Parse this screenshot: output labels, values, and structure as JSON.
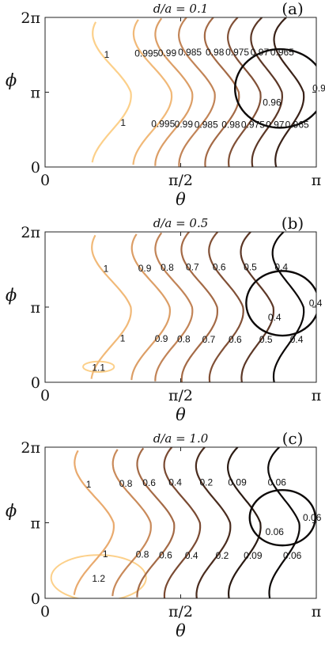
{
  "chart_data": [
    {
      "type": "contour",
      "title": "d/a = 0.1",
      "panel_label": "(a)",
      "xlabel": "θ",
      "ylabel": "ϕ",
      "xlim": [
        0,
        3.1416
      ],
      "ylim": [
        0,
        6.2832
      ],
      "xtick_labels": [
        "0",
        "π/2",
        "π"
      ],
      "ytick_labels": [
        "0",
        "π",
        "2π"
      ],
      "levels": [
        {
          "value": "1",
          "color": "#fcd08a"
        },
        {
          "value": "0.995",
          "color": "#f1b978"
        },
        {
          "value": "0.99",
          "color": "#dc9e66"
        },
        {
          "value": "0.985",
          "color": "#c28457"
        },
        {
          "value": "0.98",
          "color": "#a46a46"
        },
        {
          "value": "0.975",
          "color": "#815036"
        },
        {
          "value": "0.97",
          "color": "#5c3726"
        },
        {
          "value": "0.965",
          "color": "#3a2218"
        },
        {
          "value": "0.96",
          "color": "#0d0908"
        }
      ]
    },
    {
      "type": "contour",
      "title": "d/a = 0.5",
      "panel_label": "(b)",
      "xlabel": "θ",
      "ylabel": "ϕ",
      "xlim": [
        0,
        3.1416
      ],
      "ylim": [
        0,
        6.2832
      ],
      "xtick_labels": [
        "0",
        "π/2",
        "π"
      ],
      "ytick_labels": [
        "0",
        "π",
        "2π"
      ],
      "levels": [
        {
          "value": "1.1",
          "color": "#fcd08a"
        },
        {
          "value": "1",
          "color": "#f1b978"
        },
        {
          "value": "0.9",
          "color": "#dc9e66"
        },
        {
          "value": "0.8",
          "color": "#c28457"
        },
        {
          "value": "0.7",
          "color": "#a46a46"
        },
        {
          "value": "0.6",
          "color": "#815036"
        },
        {
          "value": "0.5",
          "color": "#5c3726"
        },
        {
          "value": "0.4",
          "color": "#0d0908"
        }
      ]
    },
    {
      "type": "contour",
      "title": "d/a = 1.0",
      "panel_label": "(c)",
      "xlabel": "θ",
      "ylabel": "ϕ",
      "xlim": [
        0,
        3.1416
      ],
      "ylim": [
        0,
        6.2832
      ],
      "xtick_labels": [
        "0",
        "π/2",
        "π"
      ],
      "ytick_labels": [
        "0",
        "π",
        "2π"
      ],
      "levels": [
        {
          "value": "1.2",
          "color": "#fcd08a"
        },
        {
          "value": "1",
          "color": "#e9aa6e"
        },
        {
          "value": "0.8",
          "color": "#c98a5a"
        },
        {
          "value": "0.6",
          "color": "#a46a46"
        },
        {
          "value": "0.4",
          "color": "#7a4a32"
        },
        {
          "value": "0.2",
          "color": "#4a2c1e"
        },
        {
          "value": "0.09",
          "color": "#2a1a12"
        },
        {
          "value": "0.06",
          "color": "#0d0908"
        }
      ]
    }
  ]
}
